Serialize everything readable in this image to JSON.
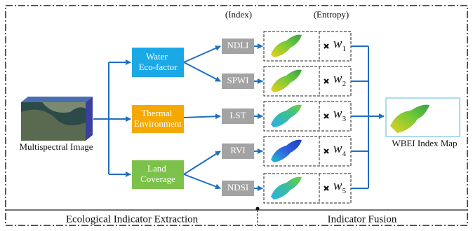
{
  "header": {
    "index": "(Index)",
    "entropy": "(Entropy)"
  },
  "input": {
    "label": "Multispectral Image"
  },
  "factors": [
    {
      "lines": [
        "Water",
        "Eco-factor"
      ]
    },
    {
      "lines": [
        "Thermal",
        "Environment"
      ]
    },
    {
      "lines": [
        "Land",
        "Coverage"
      ]
    }
  ],
  "indices": [
    {
      "label": "NDLI",
      "weight": "w",
      "subscript": "1"
    },
    {
      "label": "SPWI",
      "weight": "w",
      "subscript": "2"
    },
    {
      "label": "LST",
      "weight": "w",
      "subscript": "3"
    },
    {
      "label": "RVI",
      "weight": "w",
      "subscript": "4"
    },
    {
      "label": "NDSI",
      "weight": "w",
      "subscript": "5"
    }
  ],
  "output": {
    "label": "WBEI Index Map"
  },
  "footer": {
    "left": "Ecological Indicator Extraction",
    "right": "Indicator Fusion"
  }
}
